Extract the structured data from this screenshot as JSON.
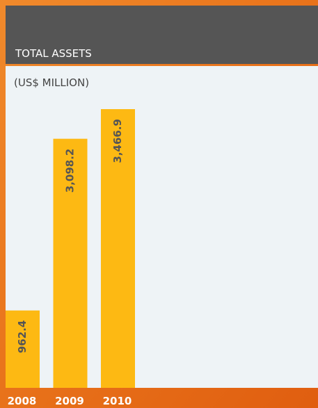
{
  "chart_data": {
    "type": "bar",
    "title": "TOTAL ASSETS",
    "subtitle": "(US$ MILLION)",
    "categories": [
      "2008",
      "2009",
      "2010"
    ],
    "values": [
      962.4,
      3098.2,
      3466.9
    ],
    "value_labels": [
      "962.4",
      "3,098.2",
      "3,466.9"
    ],
    "color": "#fdb913"
  }
}
